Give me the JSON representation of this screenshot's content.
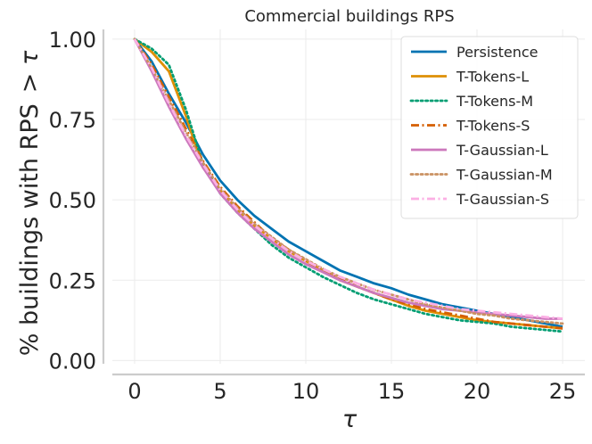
{
  "chart_data": {
    "type": "line",
    "title": "Commercial buildings RPS",
    "xlabel": "τ",
    "ylabel": "% buildings with RPS $>\\tau$",
    "ylabel_parts": {
      "text": "% buildings with RPS",
      "math": "> τ"
    },
    "xlim": [
      -1.3,
      26.3
    ],
    "ylim": [
      -0.01,
      1.03
    ],
    "x_ticks": [
      0,
      5,
      10,
      15,
      20,
      25
    ],
    "x_tick_labels": [
      "0",
      "5",
      "10",
      "15",
      "20",
      "25"
    ],
    "y_ticks": [
      0,
      0.25,
      0.5,
      0.75,
      1.0
    ],
    "y_tick_labels": [
      "0.00",
      "0.25",
      "0.50",
      "0.75",
      "1.00"
    ],
    "grid": true,
    "legend_position": "top-right",
    "x": [
      0,
      1,
      2,
      3,
      4,
      5,
      6,
      7,
      8,
      9,
      10,
      11,
      12,
      13,
      14,
      15,
      16,
      17,
      18,
      19,
      20,
      21,
      22,
      23,
      24,
      25
    ],
    "series": [
      {
        "name": "Persistence",
        "color": "#0173b2",
        "dash": "solid",
        "values": [
          1.0,
          0.93,
          0.83,
          0.74,
          0.64,
          0.56,
          0.5,
          0.45,
          0.41,
          0.37,
          0.34,
          0.31,
          0.28,
          0.26,
          0.24,
          0.225,
          0.205,
          0.19,
          0.175,
          0.165,
          0.155,
          0.145,
          0.135,
          0.125,
          0.115,
          0.105
        ]
      },
      {
        "name": "T-Tokens-L",
        "color": "#de8f05",
        "dash": "solid",
        "values": [
          1.0,
          0.96,
          0.9,
          0.76,
          0.6,
          0.53,
          0.47,
          0.42,
          0.38,
          0.34,
          0.31,
          0.28,
          0.25,
          0.23,
          0.21,
          0.19,
          0.17,
          0.155,
          0.145,
          0.135,
          0.125,
          0.12,
          0.115,
          0.11,
          0.105,
          0.1
        ]
      },
      {
        "name": "T-Tokens-M",
        "color": "#029e73",
        "dash": "dotted",
        "values": [
          1.0,
          0.97,
          0.92,
          0.78,
          0.61,
          0.52,
          0.46,
          0.41,
          0.36,
          0.32,
          0.29,
          0.26,
          0.235,
          0.21,
          0.19,
          0.175,
          0.16,
          0.145,
          0.135,
          0.125,
          0.12,
          0.115,
          0.105,
          0.1,
          0.095,
          0.09
        ]
      },
      {
        "name": "T-Tokens-S",
        "color": "#d55e00",
        "dash": "dashdot",
        "values": [
          1.0,
          0.92,
          0.82,
          0.72,
          0.62,
          0.54,
          0.48,
          0.43,
          0.38,
          0.345,
          0.31,
          0.28,
          0.255,
          0.23,
          0.21,
          0.19,
          0.175,
          0.16,
          0.15,
          0.14,
          0.13,
          0.12,
          0.115,
          0.11,
          0.105,
          0.1
        ]
      },
      {
        "name": "T-Gaussian-L",
        "color": "#cc78bc",
        "dash": "solid",
        "values": [
          1.0,
          0.9,
          0.79,
          0.69,
          0.6,
          0.52,
          0.46,
          0.41,
          0.37,
          0.33,
          0.3,
          0.275,
          0.25,
          0.23,
          0.21,
          0.195,
          0.18,
          0.17,
          0.16,
          0.155,
          0.15,
          0.145,
          0.14,
          0.135,
          0.13,
          0.13
        ]
      },
      {
        "name": "T-Gaussian-M",
        "color": "#ca9161",
        "dash": "dotted",
        "values": [
          1.0,
          0.91,
          0.81,
          0.71,
          0.615,
          0.535,
          0.475,
          0.425,
          0.385,
          0.345,
          0.315,
          0.285,
          0.26,
          0.24,
          0.22,
          0.205,
          0.19,
          0.175,
          0.165,
          0.155,
          0.145,
          0.14,
          0.13,
          0.125,
          0.12,
          0.115
        ]
      },
      {
        "name": "T-Gaussian-S",
        "color": "#fbafe4",
        "dash": "dashdot",
        "values": [
          1.0,
          0.91,
          0.8,
          0.7,
          0.61,
          0.53,
          0.47,
          0.42,
          0.38,
          0.34,
          0.31,
          0.285,
          0.26,
          0.24,
          0.22,
          0.205,
          0.19,
          0.18,
          0.17,
          0.16,
          0.155,
          0.15,
          0.145,
          0.14,
          0.135,
          0.13
        ]
      }
    ]
  }
}
